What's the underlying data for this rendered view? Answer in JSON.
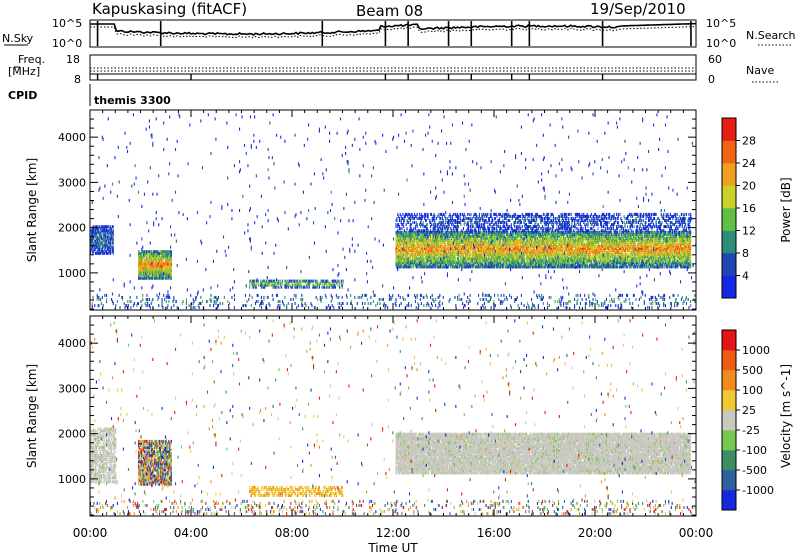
{
  "header": {
    "station": "Kapuskasing (fitACF)",
    "beam": "Beam 08",
    "date": "19/Sep/2010"
  },
  "noise_panel": {
    "left_label": "N.Sky",
    "right_label": "N.Search",
    "left_ticks": [
      "10^5",
      "10^0"
    ],
    "right_ticks": [
      "10^5",
      "10^0"
    ]
  },
  "freq_panel": {
    "left_label": "Freq.",
    "left_unit": "[MHz]",
    "right_label": "Nave",
    "left_ticks": [
      "18",
      "8"
    ],
    "right_ticks": [
      "60",
      "0"
    ]
  },
  "cpid": {
    "label": "CPID",
    "mode": "themis 3300"
  },
  "chart_data": [
    {
      "type": "heatmap",
      "name": "power",
      "ylabel": "Slant Range [km]",
      "yticks": [
        1000,
        2000,
        3000,
        4000
      ],
      "ylim": [
        180,
        4600
      ],
      "xlim_hours": [
        0,
        24
      ],
      "colorbar_label": "Power [dB]",
      "colorbar_ticks": [
        "4",
        "8",
        "12",
        "16",
        "20",
        "24",
        "28"
      ],
      "colorbar_colors": [
        "#1428e6",
        "#1e46b4",
        "#2e8c78",
        "#5fbf46",
        "#c8d228",
        "#f0a01e",
        "#f06414",
        "#e61e14"
      ],
      "regions": [
        {
          "t": [
            0.0,
            0.9
          ],
          "r": [
            1400,
            2000
          ],
          "level": 0.2,
          "density": 0.7
        },
        {
          "t": [
            1.9,
            3.2
          ],
          "r": [
            850,
            1450
          ],
          "level": 0.65,
          "density": 0.9
        },
        {
          "t": [
            6.3,
            10.0
          ],
          "r": [
            650,
            800
          ],
          "level": 0.4,
          "density": 0.6
        },
        {
          "t": [
            12.1,
            23.8
          ],
          "r": [
            1100,
            1900
          ],
          "level": 0.6,
          "density": 0.85
        },
        {
          "t": [
            12.1,
            23.8
          ],
          "r": [
            1900,
            2300
          ],
          "level": 0.15,
          "density": 0.4
        },
        {
          "t": [
            0.0,
            24.0
          ],
          "r": [
            200,
            500
          ],
          "level": 0.25,
          "density": 0.12
        },
        {
          "t": [
            0.0,
            24.0
          ],
          "r": [
            500,
            4500
          ],
          "level": 0.1,
          "density": 0.01
        }
      ]
    },
    {
      "type": "heatmap",
      "name": "velocity",
      "ylabel": "Slant Range [km]",
      "yticks": [
        1000,
        2000,
        3000,
        4000
      ],
      "ylim": [
        180,
        4600
      ],
      "xlim_hours": [
        0,
        24
      ],
      "xticks": [
        "00:00",
        "04:00",
        "08:00",
        "12:00",
        "16:00",
        "20:00",
        "00:00"
      ],
      "xlabel": "Time UT",
      "colorbar_label": "Velocity [m s^-1]",
      "colorbar_ticks": [
        "1000",
        "500",
        "100",
        "25",
        "-25",
        "-100",
        "-500",
        "-1000"
      ],
      "colorbar_colors": [
        "#1428dc",
        "#2e5fa0",
        "#3c8c64",
        "#78c850",
        "#c8c8c0",
        "#f0c832",
        "#f08c1e",
        "#f05a14",
        "#e61414"
      ],
      "regions": [
        {
          "t": [
            0.0,
            1.0
          ],
          "r": [
            900,
            2100
          ],
          "kind": "ground",
          "density": 0.6
        },
        {
          "t": [
            1.9,
            3.2
          ],
          "r": [
            850,
            1800
          ],
          "kind": "mixed",
          "density": 0.8
        },
        {
          "t": [
            6.3,
            10.0
          ],
          "r": [
            600,
            800
          ],
          "kind": "orange",
          "density": 0.5
        },
        {
          "t": [
            12.1,
            23.8
          ],
          "r": [
            1100,
            2000
          ],
          "kind": "ground",
          "density": 0.9
        },
        {
          "t": [
            0.0,
            24.0
          ],
          "r": [
            200,
            500
          ],
          "kind": "mixed",
          "density": 0.12
        },
        {
          "t": [
            0.0,
            24.0
          ],
          "r": [
            500,
            4500
          ],
          "kind": "mixed",
          "density": 0.01
        }
      ]
    }
  ]
}
